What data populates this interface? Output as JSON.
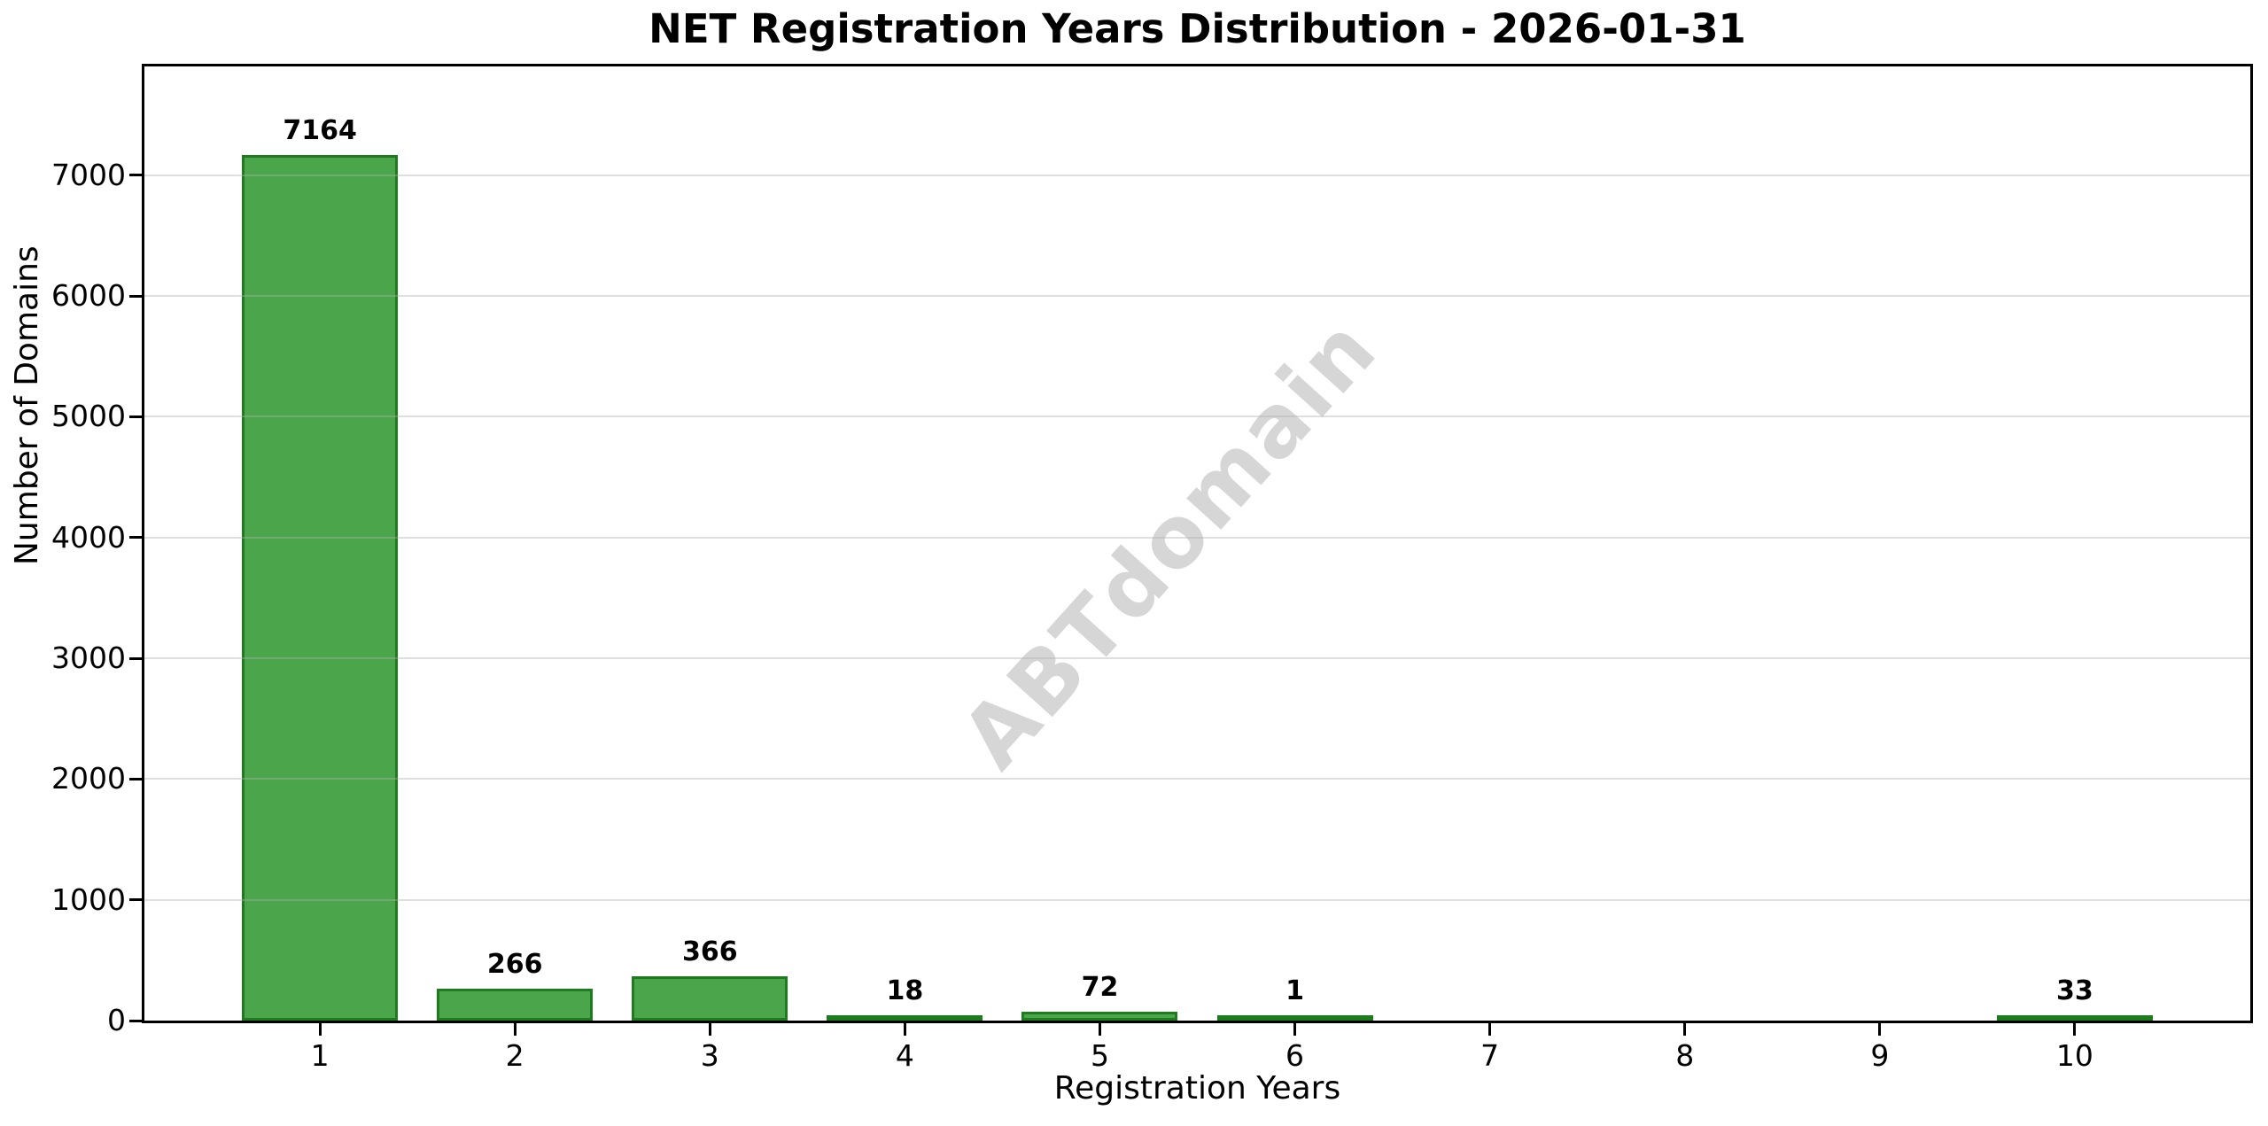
{
  "chart_data": {
    "type": "bar",
    "title": "NET Registration Years Distribution - 2026-01-31",
    "xlabel": "Registration Years",
    "ylabel": "Number of Domains",
    "categories": [
      "1",
      "2",
      "3",
      "4",
      "5",
      "6",
      "7",
      "8",
      "9",
      "10"
    ],
    "values": [
      7164,
      266,
      366,
      18,
      72,
      1,
      0,
      0,
      0,
      33
    ],
    "bar_value_labels": [
      "7164",
      "266",
      "366",
      "18",
      "72",
      "1",
      "",
      "",
      "",
      "33"
    ],
    "yticks": [
      0,
      1000,
      2000,
      3000,
      4000,
      5000,
      6000,
      7000
    ],
    "ylim": [
      0,
      7900
    ],
    "grid": "horizontal-gridlines-over-bars",
    "legend_position": "none",
    "watermark": "ABTdomain",
    "colors": {
      "bar_fill": "#4BA54B",
      "bar_edge": "#1E7B1E",
      "grid_line_rgba": "rgba(176,176,176,0.4)",
      "watermark": "#d6d6d6",
      "text": "#000000",
      "background": "#ffffff"
    }
  }
}
